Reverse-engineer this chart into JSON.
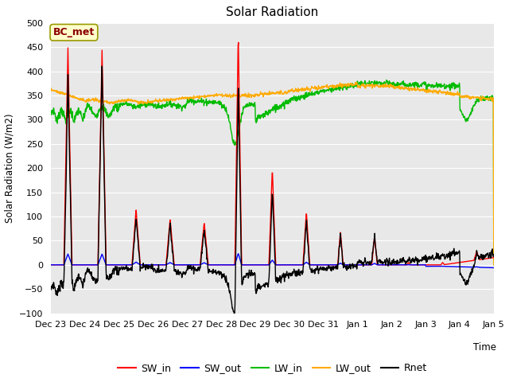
{
  "title": "Solar Radiation",
  "ylabel": "Solar Radiation (W/m2)",
  "xlabel": "Time",
  "annotation": "BC_met",
  "ylim": [
    -100,
    500
  ],
  "background_color": "#e8e8e8",
  "colors": {
    "SW_in": "#ff0000",
    "SW_out": "#0000ff",
    "LW_in": "#00bb00",
    "LW_out": "#ffaa00",
    "Rnet": "#000000"
  },
  "tick_labels": [
    "Dec 23",
    "Dec 24",
    "Dec 25",
    "Dec 26",
    "Dec 27",
    "Dec 28",
    "Dec 29",
    "Dec 30",
    "Dec 31",
    "Jan 1",
    "Jan 2",
    "Jan 3",
    "Jan 4",
    "Jan 5"
  ],
  "yticks": [
    -100,
    -50,
    0,
    50,
    100,
    150,
    200,
    250,
    300,
    350,
    400,
    450,
    500
  ]
}
